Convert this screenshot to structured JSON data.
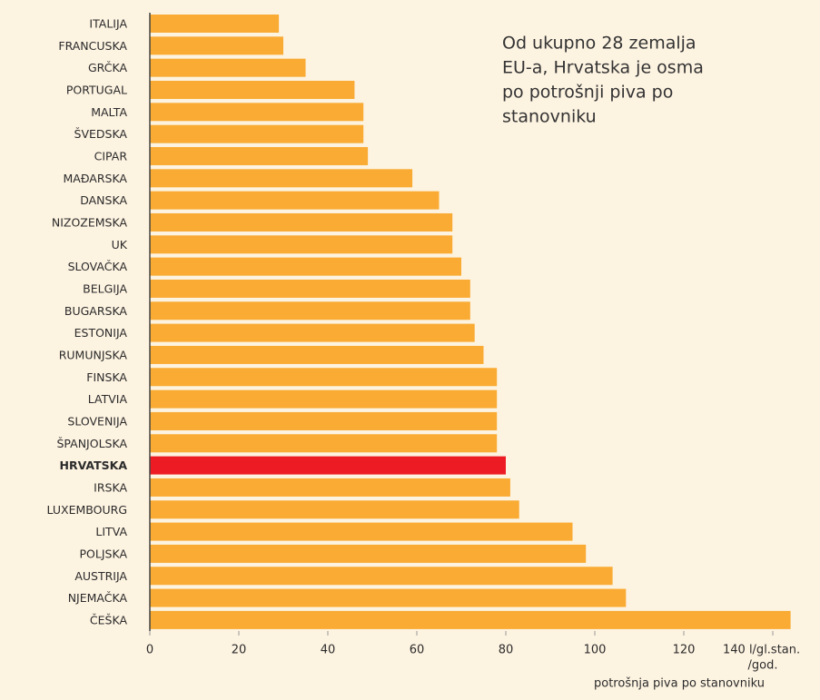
{
  "chart_data": {
    "type": "barh",
    "annotation": [
      "Od ukupno 28 zemalja",
      "EU-a, Hrvatska je osma",
      "po potrošnji piva po",
      "stanovniku"
    ],
    "x_label": "potrošnja piva po stanovniku",
    "x_unit": "/god.",
    "categories": [
      "ITALIJA",
      "FRANCUSKA",
      "GRČKA",
      "PORTUGAL",
      "MALTA",
      "ŠVEDSKA",
      "CIPAR",
      "MAĐARSKA",
      "DANSKA",
      "NIZOZEMSKA",
      "UK",
      "SLOVAČKA",
      "BELGIJA",
      "BUGARSKA",
      "ESTONIJA",
      "RUMUNJSKA",
      "FINSKA",
      "LATVIA",
      "SLOVENIJA",
      "ŠPANJOLSKA",
      "HRVATSKA",
      "IRSKA",
      "LUXEMBOURG",
      "LITVA",
      "POLJSKA",
      "AUSTRIJA",
      "NJEMAČKA",
      "ČEŠKA"
    ],
    "values": [
      29,
      30,
      35,
      46,
      48,
      48,
      49,
      59,
      65,
      68,
      68,
      70,
      72,
      72,
      73,
      75,
      78,
      78,
      78,
      78,
      80,
      81,
      83,
      95,
      98,
      104,
      107,
      144
    ],
    "color": "#f9ab33",
    "colors": [
      "#f9ab33",
      "#f9ab33",
      "#f9ab33",
      "#f9ab33",
      "#f9ab33",
      "#f9ab33",
      "#f9ab33",
      "#f9ab33",
      "#f9ab33",
      "#f9ab33",
      "#f9ab33",
      "#f9ab33",
      "#f9ab33",
      "#f9ab33",
      "#f9ab33",
      "#f9ab33",
      "#f9ab33",
      "#f9ab33",
      "#f9ab33",
      "#f9ab33",
      "#ed1c24",
      "#f9ab33",
      "#f9ab33",
      "#f9ab33",
      "#f9ab33",
      "#f9ab33",
      "#f9ab33",
      "#f9ab33"
    ],
    "xlim": [
      0,
      146
    ],
    "xticks": [
      0,
      20,
      40,
      60,
      80,
      100,
      120,
      {
        "value": 140,
        "label": "140 l/gl.stan."
      }
    ]
  }
}
